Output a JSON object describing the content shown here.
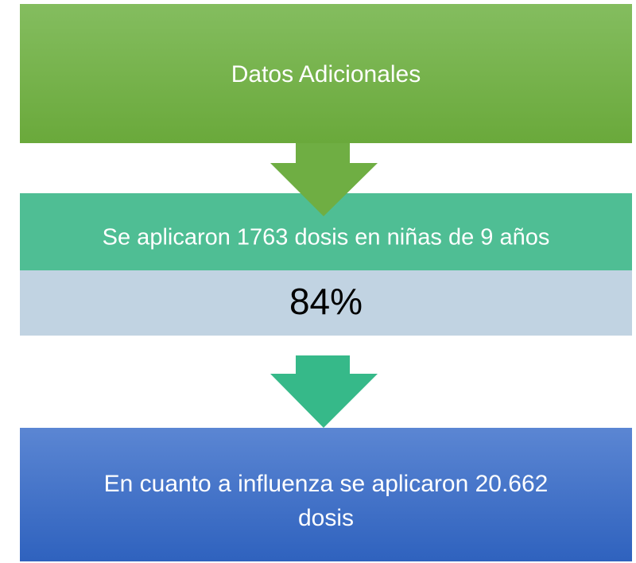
{
  "nodes": [
    {
      "label": "Datos Adicionales"
    },
    {
      "label": "Se aplicaron 1763 dosis en niñas de 9 años"
    },
    {
      "label": "84%"
    },
    {
      "label_lines": [
        "En cuanto a influenza se aplicaron 20.662",
        "dosis"
      ]
    }
  ]
}
